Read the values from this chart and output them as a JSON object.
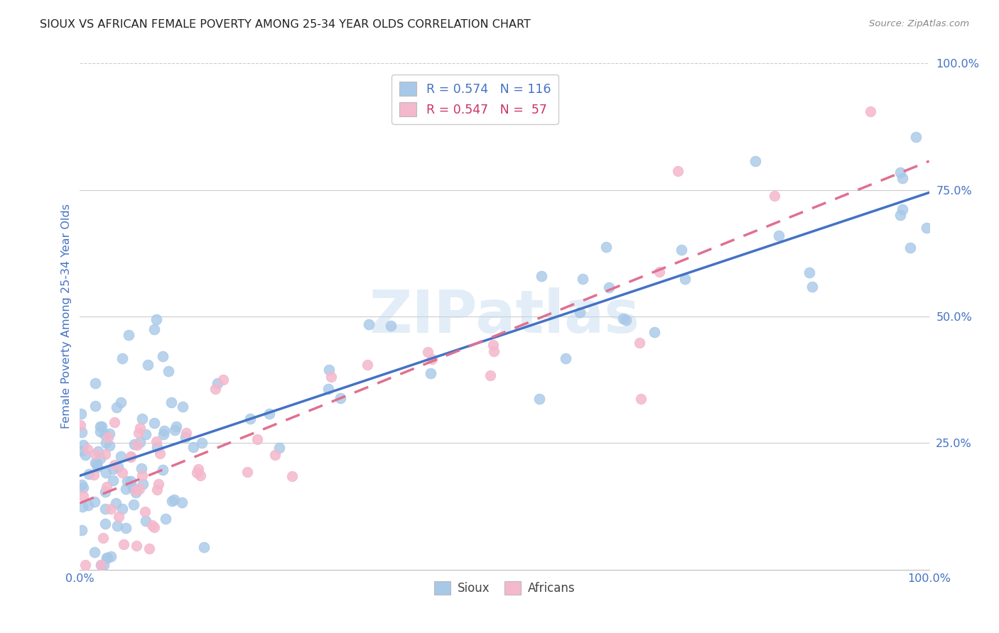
{
  "title": "SIOUX VS AFRICAN FEMALE POVERTY AMONG 25-34 YEAR OLDS CORRELATION CHART",
  "source": "Source: ZipAtlas.com",
  "ylabel": "Female Poverty Among 25-34 Year Olds",
  "watermark": "ZIPatlas",
  "legend_blue_r": "R = 0.574",
  "legend_blue_n": "N = 116",
  "legend_pink_r": "R = 0.547",
  "legend_pink_n": "N =  57",
  "blue_scatter_color": "#a8c8e8",
  "pink_scatter_color": "#f4b8cc",
  "blue_line_color": "#4472c4",
  "pink_line_color": "#e07090",
  "pink_line_dash": [
    6,
    4
  ],
  "background_color": "#ffffff",
  "grid_color": "#cccccc",
  "title_color": "#222222",
  "tick_label_color": "#4472c4",
  "source_color": "#888888",
  "legend_text_blue": "#4472c4",
  "legend_text_pink": "#cc3366",
  "ytick_positions": [
    0.25,
    0.5,
    0.75,
    1.0
  ],
  "ytick_labels": [
    "25.0%",
    "50.0%",
    "75.0%",
    "100.0%"
  ],
  "xtick_positions": [
    0.0,
    1.0
  ],
  "xtick_labels": [
    "0.0%",
    "100.0%"
  ],
  "figsize": [
    14.06,
    8.92
  ],
  "dpi": 100,
  "blue_line_start_y": 0.2,
  "blue_line_end_y": 0.76,
  "pink_line_start_y": 0.15,
  "pink_line_end_y": 0.82
}
